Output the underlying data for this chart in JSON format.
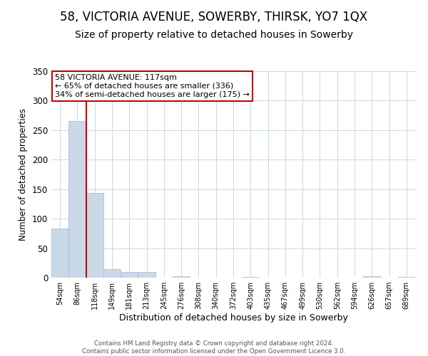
{
  "title": "58, VICTORIA AVENUE, SOWERBY, THIRSK, YO7 1QX",
  "subtitle": "Size of property relative to detached houses in Sowerby",
  "xlabel": "Distribution of detached houses by size in Sowerby",
  "ylabel": "Number of detached properties",
  "bin_labels": [
    "54sqm",
    "86sqm",
    "118sqm",
    "149sqm",
    "181sqm",
    "213sqm",
    "245sqm",
    "276sqm",
    "308sqm",
    "340sqm",
    "372sqm",
    "403sqm",
    "435sqm",
    "467sqm",
    "499sqm",
    "530sqm",
    "562sqm",
    "594sqm",
    "626sqm",
    "657sqm",
    "689sqm"
  ],
  "bar_values": [
    83,
    265,
    144,
    14,
    10,
    10,
    0,
    2,
    0,
    0,
    0,
    1,
    0,
    0,
    0,
    0,
    0,
    0,
    2,
    0,
    1
  ],
  "bar_color": "#c9d9e8",
  "bar_edge_color": "#a0b8cc",
  "highlight_line_color": "#cc0000",
  "highlight_line_bin": 2,
  "ylim": [
    0,
    350
  ],
  "yticks": [
    0,
    50,
    100,
    150,
    200,
    250,
    300,
    350
  ],
  "annotation_line1": "58 VICTORIA AVENUE: 117sqm",
  "annotation_line2": "← 65% of detached houses are smaller (336)",
  "annotation_line3": "34% of semi-detached houses are larger (175) →",
  "annotation_box_color": "#ffffff",
  "annotation_box_edge_color": "#cc0000",
  "footer_line1": "Contains HM Land Registry data © Crown copyright and database right 2024.",
  "footer_line2": "Contains public sector information licensed under the Open Government Licence 3.0.",
  "background_color": "#ffffff",
  "grid_color": "#c8d8e8",
  "title_fontsize": 12,
  "subtitle_fontsize": 10,
  "ylabel_text": "Number of detached properties"
}
